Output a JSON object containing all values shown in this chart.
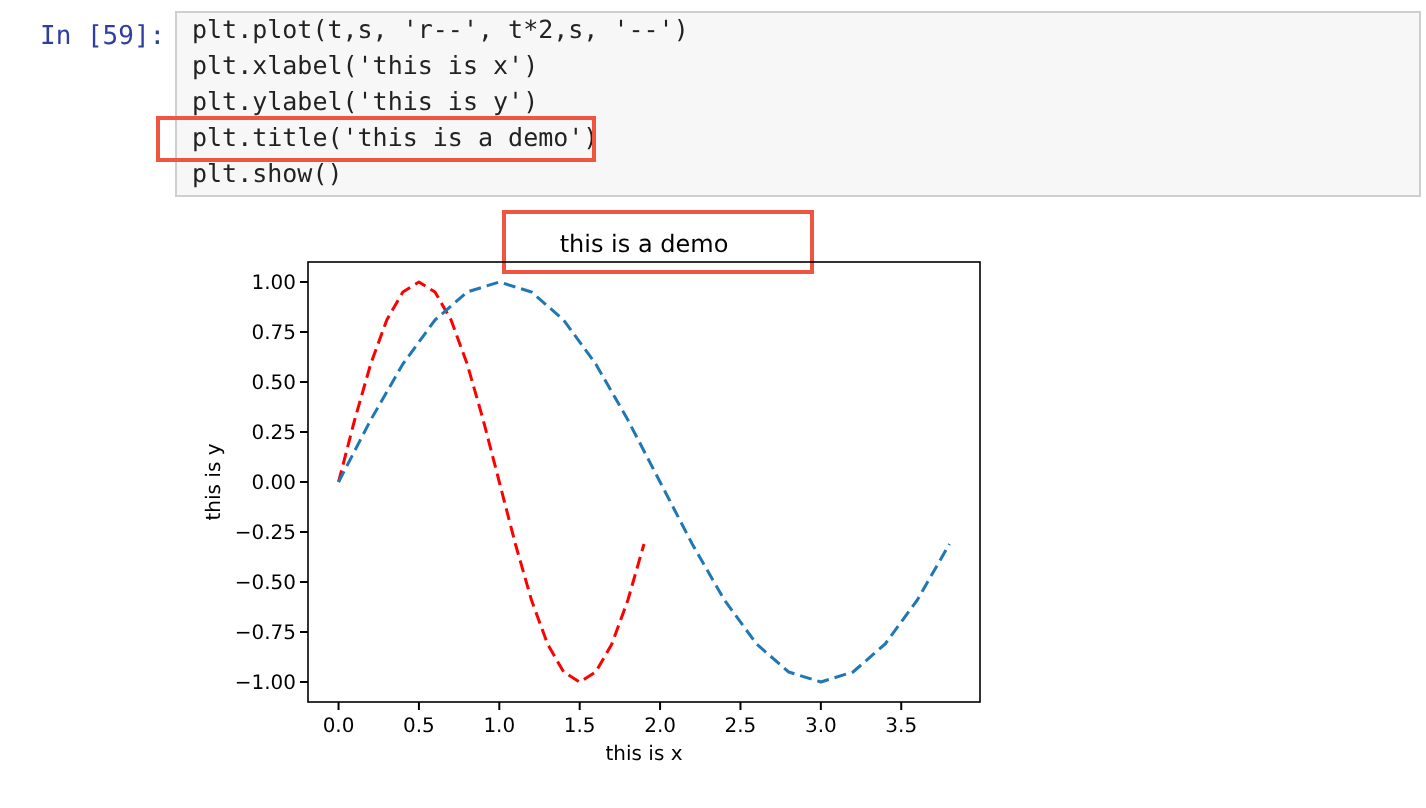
{
  "chart_data": {
    "type": "line",
    "title": "this is a demo",
    "xlabel": "this is x",
    "ylabel": "this is y",
    "annotations": [
      "In [59]:",
      "plt.plot(t,s, 'r--', t*2,s, '--')",
      "plt.xlabel('this is x')",
      "plt.ylabel('this is y')",
      "plt.title('this is a demo')",
      "plt.show()"
    ],
    "xlim": [
      -0.19,
      3.99
    ],
    "ylim": [
      -1.1,
      1.1
    ],
    "xticks": [
      {
        "value": 0,
        "label": "0.0"
      },
      {
        "value": 0.5,
        "label": "0.5"
      },
      {
        "value": 1,
        "label": "1.0"
      },
      {
        "value": 1.5,
        "label": "1.5"
      },
      {
        "value": 2,
        "label": "2.0"
      },
      {
        "value": 2.5,
        "label": "2.5"
      },
      {
        "value": 3,
        "label": "3.0"
      },
      {
        "value": 3.5,
        "label": "3.5"
      }
    ],
    "yticks": [
      {
        "value": -1,
        "label": "−1.00"
      },
      {
        "value": -0.75,
        "label": "−0.75"
      },
      {
        "value": -0.5,
        "label": "−0.50"
      },
      {
        "value": -0.25,
        "label": "−0.25"
      },
      {
        "value": 0,
        "label": "0.00"
      },
      {
        "value": 0.25,
        "label": "0.25"
      },
      {
        "value": 0.5,
        "label": "0.50"
      },
      {
        "value": 0.75,
        "label": "0.75"
      },
      {
        "value": 1,
        "label": "1.00"
      }
    ],
    "line_style": "dashed",
    "grid": false,
    "series": [
      {
        "color": "#ff0000",
        "x": [
          0,
          0.1,
          0.2,
          0.3,
          0.4,
          0.5,
          0.6,
          0.7,
          0.8,
          0.9,
          1,
          1.1,
          1.2,
          1.3,
          1.4,
          1.5,
          1.6,
          1.7,
          1.8,
          1.9
        ],
        "values": [
          0,
          0.31,
          0.59,
          0.81,
          0.95,
          1,
          0.95,
          0.81,
          0.59,
          0.31,
          0,
          -0.31,
          -0.59,
          -0.81,
          -0.95,
          -1,
          -0.95,
          -0.81,
          -0.59,
          -0.31
        ]
      },
      {
        "color": "#1f77b4",
        "x": [
          0,
          0.2,
          0.4,
          0.6,
          0.8,
          1,
          1.2,
          1.4,
          1.6,
          1.8,
          2,
          2.2,
          2.4,
          2.6,
          2.8,
          3,
          3.2,
          3.4,
          3.6,
          3.8
        ],
        "values": [
          0,
          0.31,
          0.59,
          0.81,
          0.95,
          1,
          0.95,
          0.81,
          0.59,
          0.31,
          0,
          -0.31,
          -0.59,
          -0.81,
          -0.95,
          -1,
          -0.95,
          -0.81,
          -0.59,
          -0.31
        ]
      }
    ]
  }
}
